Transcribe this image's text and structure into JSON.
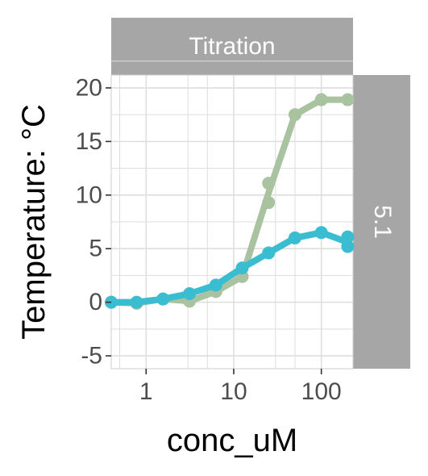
{
  "chart_data": {
    "type": "line",
    "xlabel": "conc_uM",
    "ylabel": "Temperature: °C",
    "x_scale": "log10",
    "xlim": [
      0.4,
      230
    ],
    "ylim": [
      -6.2,
      21.2
    ],
    "x_ticks": [
      {
        "value": 1,
        "label": "1"
      },
      {
        "value": 10,
        "label": "10"
      },
      {
        "value": 100,
        "label": "100"
      }
    ],
    "y_ticks": [
      {
        "value": -5,
        "label": "-5"
      },
      {
        "value": 0,
        "label": "0"
      },
      {
        "value": 5,
        "label": "5"
      },
      {
        "value": 10,
        "label": "10"
      },
      {
        "value": 15,
        "label": "15"
      },
      {
        "value": 20,
        "label": "20"
      }
    ],
    "facet_top": "Titration",
    "facet_right": "5.1",
    "grid": true,
    "legend": "none",
    "panel_background": "#ffffff",
    "grid_color": "#dedede",
    "strip_color": "#a6a6a6",
    "series": [
      {
        "color": "#a9c2a0",
        "points": [
          {
            "x": 0.4,
            "y": 0.0
          },
          {
            "x": 0.78,
            "y": -0.1
          },
          {
            "x": 1.56,
            "y": 0.3
          },
          {
            "x": 3.13,
            "y": 0.1
          },
          {
            "x": 6.25,
            "y": 1.0
          },
          {
            "x": 12.5,
            "y": 2.4
          },
          {
            "x": 25,
            "y": 9.3
          },
          {
            "x": 25,
            "y": 11.1
          },
          {
            "x": 50,
            "y": 17.5
          },
          {
            "x": 100,
            "y": 18.9
          },
          {
            "x": 200,
            "y": 18.9
          }
        ],
        "line": [
          {
            "x": 0.4,
            "y": 0.0
          },
          {
            "x": 0.78,
            "y": -0.1
          },
          {
            "x": 1.56,
            "y": 0.3
          },
          {
            "x": 3.13,
            "y": 0.1
          },
          {
            "x": 6.25,
            "y": 1.0
          },
          {
            "x": 12.5,
            "y": 2.4
          },
          {
            "x": 25,
            "y": 10.2
          },
          {
            "x": 50,
            "y": 17.5
          },
          {
            "x": 100,
            "y": 18.9
          },
          {
            "x": 200,
            "y": 18.9
          }
        ]
      },
      {
        "color": "#3bbdd1",
        "points": [
          {
            "x": 0.4,
            "y": 0.0
          },
          {
            "x": 0.78,
            "y": 0.0
          },
          {
            "x": 1.56,
            "y": 0.3
          },
          {
            "x": 3.13,
            "y": 0.8
          },
          {
            "x": 6.25,
            "y": 1.6
          },
          {
            "x": 12.5,
            "y": 3.2
          },
          {
            "x": 25,
            "y": 4.6
          },
          {
            "x": 50,
            "y": 6.0
          },
          {
            "x": 100,
            "y": 6.5
          },
          {
            "x": 200,
            "y": 6.1
          },
          {
            "x": 200,
            "y": 5.2
          }
        ],
        "line": [
          {
            "x": 0.4,
            "y": 0.0
          },
          {
            "x": 0.78,
            "y": 0.0
          },
          {
            "x": 1.56,
            "y": 0.3
          },
          {
            "x": 3.13,
            "y": 0.8
          },
          {
            "x": 6.25,
            "y": 1.6
          },
          {
            "x": 12.5,
            "y": 3.2
          },
          {
            "x": 25,
            "y": 4.6
          },
          {
            "x": 50,
            "y": 6.0
          },
          {
            "x": 100,
            "y": 6.5
          },
          {
            "x": 200,
            "y": 5.6
          }
        ]
      }
    ]
  }
}
